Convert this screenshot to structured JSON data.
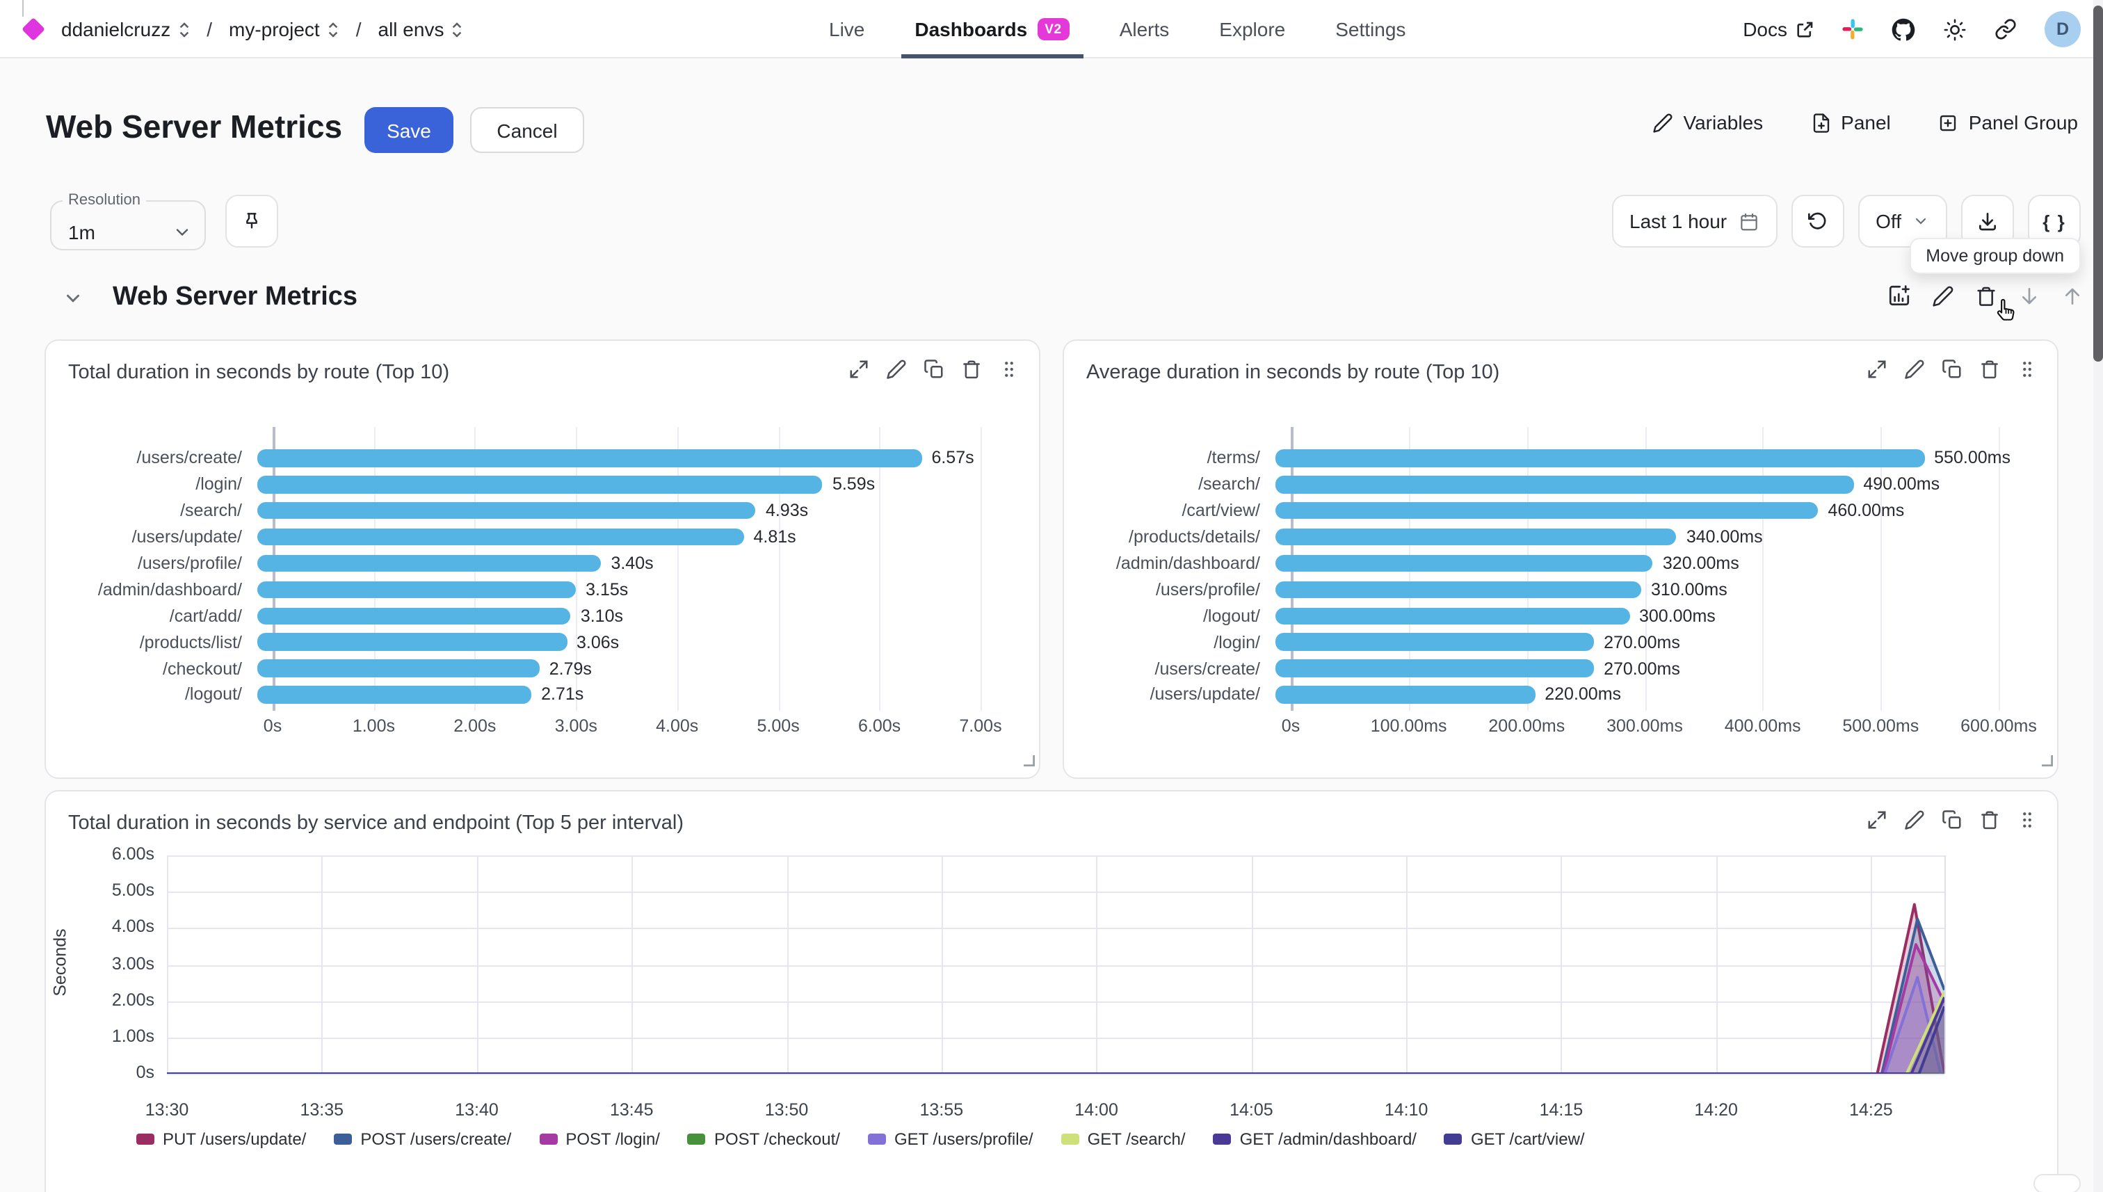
{
  "nav": {
    "breadcrumb": {
      "org": "ddanielcruzz",
      "project": "my-project",
      "env": "all envs",
      "separator": "/"
    },
    "tabs": [
      {
        "label": "Live"
      },
      {
        "label": "Dashboards",
        "badge": "V2",
        "active": true
      },
      {
        "label": "Alerts"
      },
      {
        "label": "Explore"
      },
      {
        "label": "Settings"
      }
    ],
    "docs_label": "Docs",
    "avatar_letter": "D",
    "logo_color": "#df35df",
    "badge_color": "#e438d8"
  },
  "header": {
    "title": "Web Server Metrics",
    "save_label": "Save",
    "cancel_label": "Cancel",
    "variables_label": "Variables",
    "panel_label": "Panel",
    "panel_group_label": "Panel Group",
    "save_color": "#3b63d9"
  },
  "toolbar": {
    "resolution_label": "Resolution",
    "resolution_value": "1m",
    "time_range": "Last 1 hour",
    "refresh_interval": "Off",
    "braces_label": "{ }"
  },
  "tooltip": {
    "text": "Move group down"
  },
  "group": {
    "title": "Web Server Metrics"
  },
  "chart_data": [
    {
      "type": "bar",
      "orientation": "horizontal",
      "title": "Total duration in seconds by route (Top 10)",
      "bar_color": "#55b4e4",
      "categories": [
        "/users/create/",
        "/login/",
        "/search/",
        "/users/update/",
        "/users/profile/",
        "/admin/dashboard/",
        "/cart/add/",
        "/products/list/",
        "/checkout/",
        "/logout/"
      ],
      "values": [
        6.57,
        5.59,
        4.93,
        4.81,
        3.4,
        3.15,
        3.1,
        3.06,
        2.79,
        2.71
      ],
      "value_labels": [
        "6.57s",
        "5.59s",
        "4.93s",
        "4.81s",
        "3.40s",
        "3.15s",
        "3.10s",
        "3.06s",
        "2.79s",
        "2.71s"
      ],
      "axis_max": 7,
      "x_ticks": [
        {
          "v": 0,
          "label": "0s"
        },
        {
          "v": 1,
          "label": "1.00s"
        },
        {
          "v": 2,
          "label": "2.00s"
        },
        {
          "v": 3,
          "label": "3.00s"
        },
        {
          "v": 4,
          "label": "4.00s"
        },
        {
          "v": 5,
          "label": "5.00s"
        },
        {
          "v": 6,
          "label": "6.00s"
        },
        {
          "v": 7,
          "label": "7.00s"
        }
      ]
    },
    {
      "type": "bar",
      "orientation": "horizontal",
      "title": "Average duration in seconds by route (Top 10)",
      "bar_color": "#55b4e4",
      "categories": [
        "/terms/",
        "/search/",
        "/cart/view/",
        "/products/details/",
        "/admin/dashboard/",
        "/users/profile/",
        "/logout/",
        "/login/",
        "/users/create/",
        "/users/update/"
      ],
      "values": [
        550,
        490,
        460,
        340,
        320,
        310,
        300,
        270,
        270,
        220
      ],
      "value_labels": [
        "550.00ms",
        "490.00ms",
        "460.00ms",
        "340.00ms",
        "320.00ms",
        "310.00ms",
        "300.00ms",
        "270.00ms",
        "270.00ms",
        "220.00ms"
      ],
      "axis_max": 600,
      "x_ticks": [
        {
          "v": 0,
          "label": "0s"
        },
        {
          "v": 100,
          "label": "100.00ms"
        },
        {
          "v": 200,
          "label": "200.00ms"
        },
        {
          "v": 300,
          "label": "300.00ms"
        },
        {
          "v": 400,
          "label": "400.00ms"
        },
        {
          "v": 500,
          "label": "500.00ms"
        },
        {
          "v": 600,
          "label": "600.00ms"
        }
      ]
    },
    {
      "type": "line",
      "title": "Total duration in seconds by service and endpoint (Top 5 per interval)",
      "ylabel": "Seconds",
      "ylim": [
        0,
        6
      ],
      "x_max_minutes": 57.37,
      "grid": true,
      "legend_position": "bottom",
      "y_ticks": [
        {
          "v": 0,
          "label": "0s"
        },
        {
          "v": 1,
          "label": "1.00s"
        },
        {
          "v": 2,
          "label": "2.00s"
        },
        {
          "v": 3,
          "label": "3.00s"
        },
        {
          "v": 4,
          "label": "4.00s"
        },
        {
          "v": 5,
          "label": "5.00s"
        },
        {
          "v": 6,
          "label": "6.00s"
        }
      ],
      "x_ticks": [
        {
          "t": 0,
          "label": "13:30"
        },
        {
          "t": 5,
          "label": "13:35"
        },
        {
          "t": 10,
          "label": "13:40"
        },
        {
          "t": 15,
          "label": "13:45"
        },
        {
          "t": 20,
          "label": "13:50"
        },
        {
          "t": 25,
          "label": "13:55"
        },
        {
          "t": 30,
          "label": "14:00"
        },
        {
          "t": 35,
          "label": "14:05"
        },
        {
          "t": 40,
          "label": "14:10"
        },
        {
          "t": 45,
          "label": "14:15"
        },
        {
          "t": 50,
          "label": "14:20"
        },
        {
          "t": 55,
          "label": "14:25"
        }
      ],
      "series": [
        {
          "name": "PUT /users/update/",
          "color": "#9a2e63",
          "points": [
            [
              0,
              0
            ],
            [
              55.2,
              0
            ],
            [
              56.4,
              4.65
            ],
            [
              57.37,
              0
            ]
          ]
        },
        {
          "name": "POST /users/create/",
          "color": "#3c5f99",
          "points": [
            [
              0,
              0
            ],
            [
              55.35,
              0
            ],
            [
              56.5,
              4.25
            ],
            [
              57.37,
              2.3
            ]
          ]
        },
        {
          "name": "POST /login/",
          "color": "#a43aa2",
          "points": [
            [
              0,
              0
            ],
            [
              55.4,
              0
            ],
            [
              56.45,
              3.55
            ],
            [
              57.37,
              1.95
            ]
          ]
        },
        {
          "name": "POST /checkout/",
          "color": "#47913d",
          "points": [
            [
              0,
              0
            ],
            [
              57.37,
              0
            ]
          ]
        },
        {
          "name": "GET /users/profile/",
          "color": "#8471d8",
          "points": [
            [
              0,
              0
            ],
            [
              55.45,
              0
            ],
            [
              56.5,
              2.65
            ],
            [
              57.25,
              0
            ]
          ]
        },
        {
          "name": "GET /search/",
          "color": "#cde07a",
          "points": [
            [
              0,
              0
            ],
            [
              56.15,
              0
            ],
            [
              57.37,
              2.25
            ]
          ]
        },
        {
          "name": "GET /admin/dashboard/",
          "color": "#4b3996",
          "points": [
            [
              0,
              0
            ],
            [
              56.3,
              0
            ],
            [
              57.37,
              2.1
            ]
          ]
        },
        {
          "name": "GET /cart/view/",
          "color": "#423c94",
          "points": [
            [
              0,
              0
            ],
            [
              56.55,
              0
            ],
            [
              57.37,
              1.85
            ]
          ]
        }
      ]
    }
  ]
}
